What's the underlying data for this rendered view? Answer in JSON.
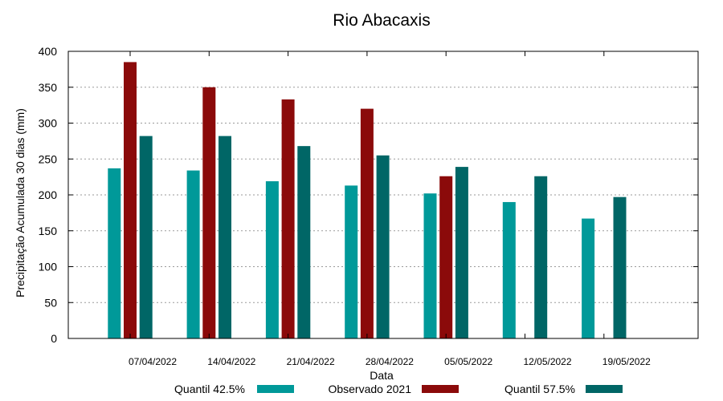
{
  "chart_data": {
    "type": "bar",
    "title": "Rio Abacaxis",
    "xlabel": "Data",
    "ylabel": "Precipitação Acumulada 30 dias (mm)",
    "ylim": [
      0,
      400
    ],
    "yticks": [
      0,
      50,
      100,
      150,
      200,
      250,
      300,
      350,
      400
    ],
    "grid": true,
    "legend_position": "bottom",
    "categories": [
      "07/04/2022",
      "14/04/2022",
      "21/04/2022",
      "28/04/2022",
      "05/05/2022",
      "12/05/2022",
      "19/05/2022"
    ],
    "series": [
      {
        "name": "Quantil 42.5%",
        "color": "#009999",
        "values": [
          237,
          234,
          219,
          213,
          202,
          190,
          167
        ]
      },
      {
        "name": "Observado 2021",
        "color": "#8b0a0a",
        "values": [
          385,
          350,
          333,
          320,
          226,
          null,
          null
        ]
      },
      {
        "name": "Quantil 57.5%",
        "color": "#006666",
        "values": [
          282,
          282,
          268,
          255,
          239,
          226,
          197
        ]
      }
    ]
  }
}
